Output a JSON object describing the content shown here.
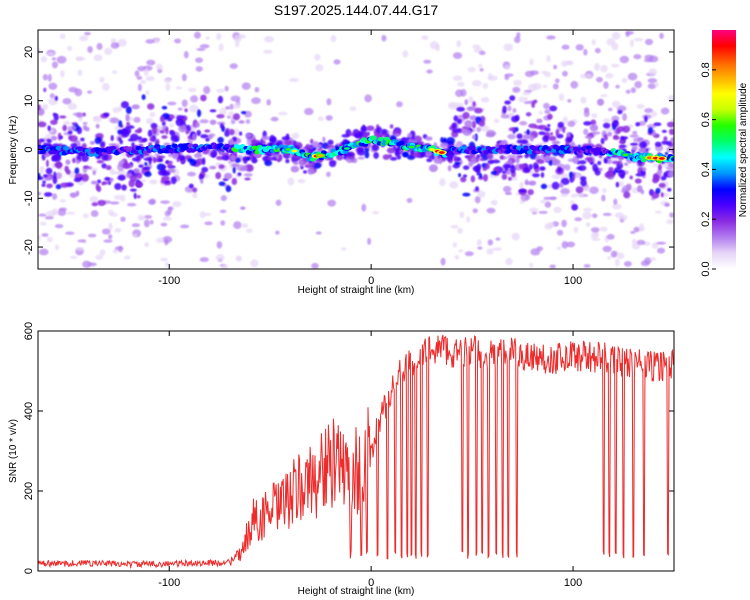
{
  "title": "S197.2025.144.07.44.G17",
  "chart_data": [
    {
      "type": "heatmap",
      "xlabel": "Height of straight line (km)",
      "ylabel": "Frequency (Hz)",
      "xlim": [
        -165,
        150
      ],
      "ylim": [
        -24.5,
        24.5
      ],
      "xticks": [
        -100,
        0,
        100
      ],
      "yticks": [
        -20,
        -10,
        0,
        10,
        20
      ],
      "colorbar": {
        "label": "Normalized spectral amplitude",
        "range": [
          0,
          0.96
        ],
        "ticks": [
          0.0,
          0.2,
          0.4,
          0.6,
          0.8
        ],
        "colormap": [
          "#ffffff",
          "#e6d5f7",
          "#b27df0",
          "#8a2be2",
          "#4a00ff",
          "#0000ff",
          "#0095ff",
          "#00ffff",
          "#00ff6a",
          "#22ff00",
          "#c8ff00",
          "#ffff00",
          "#ffb000",
          "#ff6000",
          "#ff0000",
          "#ff0080"
        ]
      },
      "ridge": {
        "description_points_x": [
          -165,
          -140,
          -110,
          -80,
          -60,
          -40,
          -30,
          -20,
          -10,
          0,
          10,
          20,
          30,
          38,
          40,
          60,
          80,
          100,
          120,
          130,
          150
        ],
        "description_points_y": [
          0,
          -0.5,
          0,
          0.5,
          0,
          0,
          -1.5,
          -1,
          0.5,
          2,
          1.5,
          0.5,
          0,
          -1,
          0,
          0,
          0,
          0,
          -0.5,
          -1.5,
          -2
        ]
      },
      "grid": false
    },
    {
      "type": "line",
      "xlabel": "Height of straight line (km)",
      "ylabel": "SNR (10 * v/v)",
      "xlim": [
        -165,
        150
      ],
      "ylim": [
        0,
        600
      ],
      "xticks": [
        -100,
        0,
        100
      ],
      "yticks": [
        0,
        200,
        400,
        600
      ],
      "color": "#ee2a2a",
      "series": [
        {
          "x": [
            -165,
            -140,
            -120,
            -100,
            -80,
            -70,
            -65,
            -62,
            -60,
            -58,
            -55,
            -50,
            -45,
            -40,
            -35,
            -30,
            -25,
            -20,
            -15,
            -10,
            -5,
            0,
            5,
            10,
            15,
            20,
            25,
            30,
            35,
            40,
            50,
            60,
            70,
            80,
            90,
            100,
            110,
            120,
            130,
            140,
            150
          ],
          "values": [
            18,
            20,
            17,
            18,
            20,
            22,
            40,
            80,
            110,
            130,
            130,
            150,
            160,
            185,
            210,
            220,
            250,
            270,
            250,
            260,
            250,
            300,
            380,
            460,
            500,
            520,
            540,
            555,
            560,
            545,
            550,
            540,
            545,
            535,
            530,
            540,
            535,
            530,
            520,
            510,
            520
          ]
        }
      ],
      "dropouts_x": [
        -10,
        -5,
        -2,
        3,
        8,
        12,
        15,
        18,
        20,
        22,
        25,
        28,
        45,
        48,
        52,
        55,
        58,
        62,
        65,
        68,
        72,
        115,
        118,
        121,
        125,
        130,
        135,
        147
      ],
      "grid": false
    }
  ]
}
